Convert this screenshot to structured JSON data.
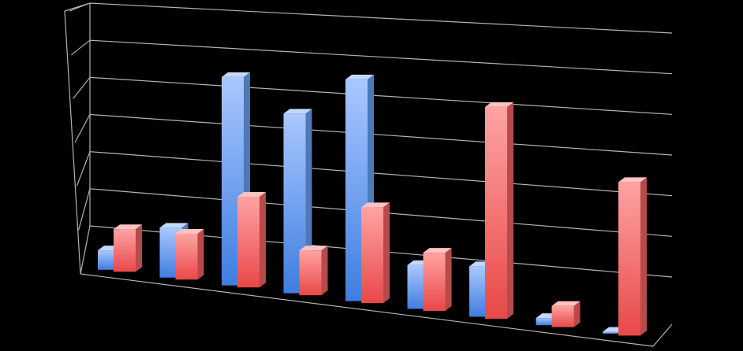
{
  "chart_data": {
    "type": "bar",
    "categories": [
      "",
      "",
      "",
      "",
      "",
      "",
      "",
      "",
      ""
    ],
    "series": [
      {
        "values": [
          0.5,
          1.3,
          5.5,
          4.8,
          6.0,
          1.2,
          1.4,
          0.2,
          0.05
        ]
      },
      {
        "values": [
          1.1,
          1.2,
          2.4,
          1.2,
          2.6,
          1.6,
          5.9,
          0.6,
          4.4
        ]
      }
    ],
    "ylim": [
      0,
      6
    ],
    "grid": true,
    "legend": "none",
    "colors": {
      "series_a": "#8fb4f5",
      "series_b": "#f47c7c",
      "grid": "#b3b3b3",
      "background": "#000000"
    }
  }
}
